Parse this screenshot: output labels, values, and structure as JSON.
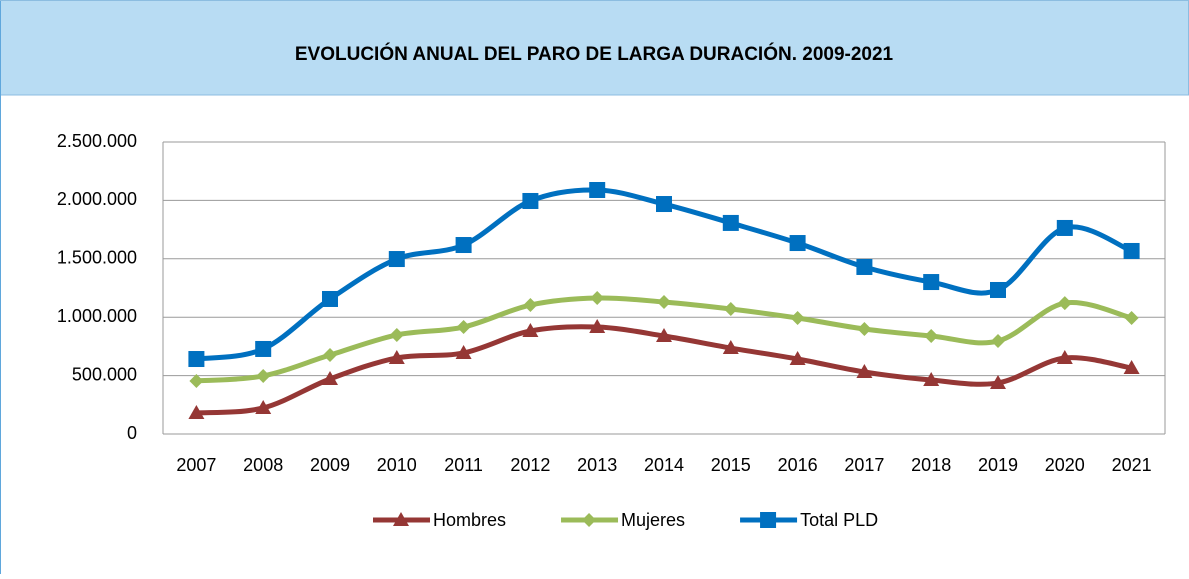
{
  "chart_data": {
    "type": "line",
    "title": "EVOLUCIÓN ANUAL DEL PARO DE LARGA DURACIÓN. 2009-2021",
    "categories": [
      "2007",
      "2008",
      "2009",
      "2010",
      "2011",
      "2012",
      "2013",
      "2014",
      "2015",
      "2016",
      "2017",
      "2018",
      "2019",
      "2020",
      "2021"
    ],
    "series": [
      {
        "name": "Hombres",
        "color": "#953735",
        "marker": "triangle",
        "values": [
          180000,
          223000,
          471000,
          651000,
          694000,
          882000,
          916000,
          839000,
          736000,
          642000,
          531000,
          462000,
          437000,
          651000,
          565000
        ]
      },
      {
        "name": "Mujeres",
        "color": "#9bbb59",
        "marker": "diamond",
        "values": [
          454000,
          497000,
          676000,
          848000,
          916000,
          1104000,
          1164000,
          1130000,
          1070000,
          993000,
          899000,
          839000,
          796000,
          1121000,
          993000
        ]
      },
      {
        "name": "Total PLD",
        "color": "#0070c0",
        "marker": "square",
        "values": [
          642000,
          728000,
          1156000,
          1498000,
          1618000,
          1995000,
          2089000,
          1969000,
          1807000,
          1635000,
          1430000,
          1301000,
          1233000,
          1764000,
          1567000
        ]
      }
    ],
    "ylim": [
      0,
      2500000
    ],
    "yticks": [
      0,
      {
        "value": 500000,
        "label": "500.000"
      },
      {
        "value": 1000000,
        "label": "1.000.000"
      },
      {
        "value": 1500000,
        "label": "1.500.000"
      },
      {
        "value": 2000000,
        "label": "2.000.000"
      },
      {
        "value": 2500000,
        "label": "2.500.000"
      }
    ],
    "grid": true,
    "smooth": true,
    "legend": "bottom"
  }
}
